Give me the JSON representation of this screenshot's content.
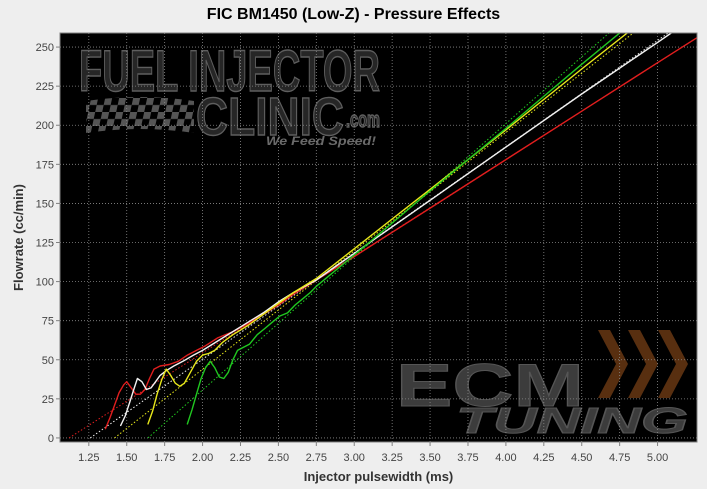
{
  "watermarks": {
    "fic": {
      "line1": "FUEL INJECTOR",
      "line2": "CLINIC",
      "suffix": ".com",
      "tagline": "We Feed Speed!"
    },
    "ecm": {
      "line1": "ECM",
      "line2": "TUNING",
      "accent_color": "#a0561e"
    }
  },
  "chart_data": {
    "type": "line",
    "title": "FIC BM1450 (Low-Z) - Pressure Effects",
    "xlabel": "Injector pulsewidth (ms)",
    "ylabel": "Flowrate (cc/min)",
    "xlim": [
      1.06,
      5.26
    ],
    "ylim": [
      -2.6,
      259
    ],
    "x_ticks": [
      "1.25",
      "1.50",
      "1.75",
      "2.00",
      "2.25",
      "2.50",
      "2.75",
      "3.00",
      "3.25",
      "3.50",
      "3.75",
      "4.00",
      "4.25",
      "4.50",
      "4.75",
      "5.00"
    ],
    "y_ticks": [
      "0",
      "25",
      "50",
      "75",
      "100",
      "125",
      "150",
      "175",
      "200",
      "225",
      "250"
    ],
    "grid": true,
    "background": "#000000",
    "series": [
      {
        "color": "#e01e1e",
        "points": [
          [
            1.36,
            6
          ],
          [
            1.39,
            13
          ],
          [
            1.42,
            21
          ],
          [
            1.45,
            29
          ],
          [
            1.48,
            34
          ],
          [
            1.5,
            36
          ],
          [
            1.53,
            32
          ],
          [
            1.56,
            28
          ],
          [
            1.59,
            28
          ],
          [
            1.62,
            31
          ],
          [
            1.65,
            38
          ],
          [
            1.68,
            44
          ],
          [
            1.72,
            46
          ],
          [
            1.78,
            47
          ],
          [
            1.84,
            49
          ],
          [
            1.9,
            53
          ],
          [
            1.96,
            56
          ],
          [
            2.02,
            59
          ],
          [
            2.1,
            64
          ],
          [
            2.2,
            68
          ],
          [
            2.3,
            73
          ],
          [
            2.4,
            79
          ],
          [
            2.5,
            85
          ],
          [
            2.6,
            92
          ],
          [
            2.75,
            101
          ],
          [
            3.0,
            116
          ],
          [
            3.5,
            147
          ],
          [
            4.0,
            178
          ],
          [
            4.5,
            209
          ],
          [
            5.0,
            240
          ],
          [
            5.26,
            256
          ]
        ]
      },
      {
        "color": "#f2f2f2",
        "points": [
          [
            1.46,
            8
          ],
          [
            1.49,
            14
          ],
          [
            1.52,
            23
          ],
          [
            1.55,
            32
          ],
          [
            1.57,
            38
          ],
          [
            1.6,
            36
          ],
          [
            1.63,
            31
          ],
          [
            1.66,
            32
          ],
          [
            1.69,
            36
          ],
          [
            1.72,
            40
          ],
          [
            1.76,
            43
          ],
          [
            1.81,
            46
          ],
          [
            1.87,
            49
          ],
          [
            1.94,
            53
          ],
          [
            2.0,
            56
          ],
          [
            2.1,
            62
          ],
          [
            2.2,
            68
          ],
          [
            2.3,
            74
          ],
          [
            2.4,
            80
          ],
          [
            2.5,
            87
          ],
          [
            2.6,
            93
          ],
          [
            2.75,
            101
          ],
          [
            3.0,
            118
          ],
          [
            3.5,
            152
          ],
          [
            4.0,
            186
          ],
          [
            4.5,
            220
          ],
          [
            5.0,
            253
          ],
          [
            5.09,
            259
          ]
        ]
      },
      {
        "color": "#e8e81a",
        "points": [
          [
            1.64,
            9
          ],
          [
            1.67,
            17
          ],
          [
            1.7,
            28
          ],
          [
            1.73,
            37
          ],
          [
            1.76,
            44
          ],
          [
            1.79,
            40
          ],
          [
            1.82,
            35
          ],
          [
            1.85,
            33
          ],
          [
            1.88,
            35
          ],
          [
            1.92,
            42
          ],
          [
            1.96,
            49
          ],
          [
            2.0,
            53
          ],
          [
            2.04,
            54
          ],
          [
            2.08,
            56
          ],
          [
            2.13,
            61
          ],
          [
            2.2,
            66
          ],
          [
            2.3,
            72
          ],
          [
            2.4,
            79
          ],
          [
            2.5,
            86
          ],
          [
            2.6,
            93
          ],
          [
            2.75,
            102
          ],
          [
            3.0,
            121
          ],
          [
            3.5,
            159
          ],
          [
            4.0,
            197
          ],
          [
            4.5,
            236
          ],
          [
            4.8,
            259
          ]
        ]
      },
      {
        "color": "#20c820",
        "points": [
          [
            1.9,
            9
          ],
          [
            1.93,
            18
          ],
          [
            1.96,
            28
          ],
          [
            1.99,
            38
          ],
          [
            2.02,
            45
          ],
          [
            2.05,
            49
          ],
          [
            2.08,
            45
          ],
          [
            2.11,
            39
          ],
          [
            2.14,
            38
          ],
          [
            2.17,
            42
          ],
          [
            2.2,
            50
          ],
          [
            2.23,
            56
          ],
          [
            2.27,
            58
          ],
          [
            2.31,
            60
          ],
          [
            2.36,
            66
          ],
          [
            2.41,
            70
          ],
          [
            2.46,
            74
          ],
          [
            2.51,
            78
          ],
          [
            2.56,
            80
          ],
          [
            2.61,
            85
          ],
          [
            2.66,
            89
          ],
          [
            2.71,
            93
          ],
          [
            2.75,
            97
          ],
          [
            3.0,
            117
          ],
          [
            3.5,
            158
          ],
          [
            4.0,
            198
          ],
          [
            4.5,
            239
          ],
          [
            4.75,
            259
          ]
        ]
      }
    ],
    "fit_lines": [
      {
        "color": "#e01e1e",
        "points": [
          [
            1.12,
            0
          ],
          [
            5.26,
            256
          ]
        ]
      },
      {
        "color": "#f2f2f2",
        "points": [
          [
            1.26,
            0
          ],
          [
            5.07,
            259
          ]
        ]
      },
      {
        "color": "#e8e81a",
        "points": [
          [
            1.42,
            0
          ],
          [
            4.84,
            259
          ]
        ]
      },
      {
        "color": "#20c820",
        "points": [
          [
            1.64,
            0
          ],
          [
            4.68,
            259
          ]
        ]
      }
    ]
  }
}
